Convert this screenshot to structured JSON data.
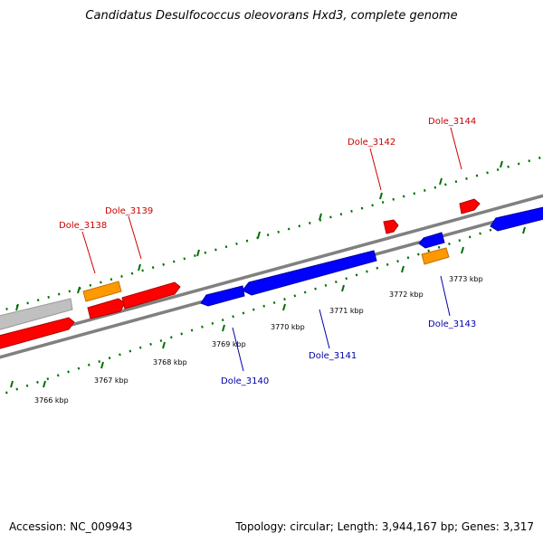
{
  "title": "Candidatus Desulfococcus oleovorans Hxd3, complete genome",
  "footer": {
    "accession": "Accession: NC_009943",
    "topology": "Topology: circular; Length: 3,944,167 bp; Genes: 3,317"
  },
  "colors": {
    "forward_gene": "#ff0000",
    "reverse_gene": "#0000ff",
    "rna_feature": "#ff9900",
    "other_feature": "#c0c0c0",
    "ticks": "#007000",
    "backbone": "#808080",
    "forward_label": "#cc0000",
    "reverse_label": "#0000aa"
  },
  "scale_labels": [
    "3766 kbp",
    "3767 kbp",
    "3768 kbp",
    "3769 kbp",
    "3770 kbp",
    "3771 kbp",
    "3772 kbp",
    "3773 kbp"
  ],
  "gene_labels": {
    "forward": [
      "Dole_3138",
      "Dole_3139",
      "Dole_3142",
      "Dole_3144"
    ],
    "reverse": [
      "Dole_3140",
      "Dole_3141",
      "Dole_3143"
    ]
  }
}
